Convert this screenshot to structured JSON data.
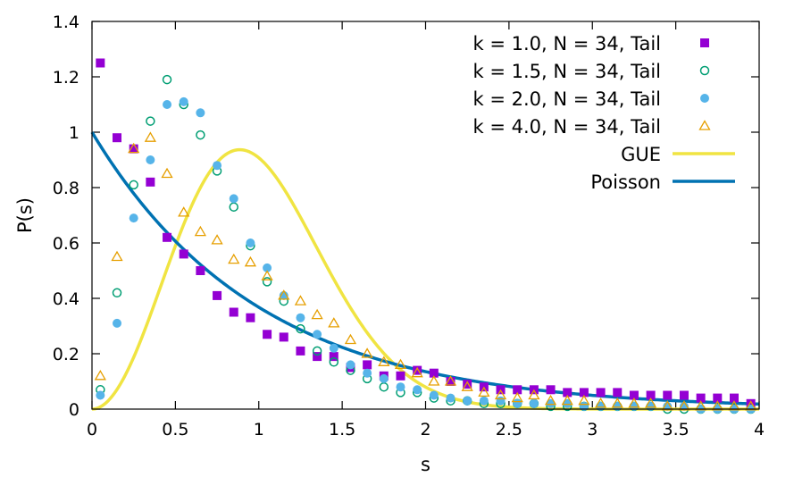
{
  "chart_data": {
    "type": "scatter",
    "title": "",
    "xlabel": "s",
    "ylabel": "P(s)",
    "xlim": [
      0,
      4
    ],
    "ylim": [
      0,
      1.4
    ],
    "xticks": [
      0,
      0.5,
      1,
      1.5,
      2,
      2.5,
      3,
      3.5,
      4
    ],
    "xtick_labels": [
      "0",
      "0.5",
      "1",
      "1.5",
      "2",
      "2.5",
      "3",
      "3.5",
      "4"
    ],
    "yticks": [
      0,
      0.2,
      0.4,
      0.6,
      0.8,
      1,
      1.2,
      1.4
    ],
    "ytick_labels": [
      "0",
      "0.2",
      "0.4",
      "0.6",
      "0.8",
      "1",
      "1.2",
      "1.4"
    ],
    "legend_position": "top-right",
    "x": [
      0.05,
      0.15,
      0.25,
      0.35,
      0.45,
      0.55,
      0.65,
      0.75,
      0.85,
      0.95,
      1.05,
      1.15,
      1.25,
      1.35,
      1.45,
      1.55,
      1.65,
      1.75,
      1.85,
      1.95,
      2.05,
      2.15,
      2.25,
      2.35,
      2.45,
      2.55,
      2.65,
      2.75,
      2.85,
      2.95,
      3.05,
      3.15,
      3.25,
      3.35,
      3.45,
      3.55,
      3.65,
      3.75,
      3.85,
      3.95
    ],
    "series": [
      {
        "name": "k = 1.0, N = 34, Tail",
        "marker": "filled-square",
        "color": "#9400d3",
        "values": [
          1.25,
          0.98,
          0.94,
          0.82,
          0.62,
          0.56,
          0.5,
          0.41,
          0.35,
          0.33,
          0.27,
          0.26,
          0.21,
          0.19,
          0.19,
          0.15,
          0.16,
          0.12,
          0.12,
          0.14,
          0.13,
          0.1,
          0.09,
          0.08,
          0.07,
          0.07,
          0.07,
          0.07,
          0.06,
          0.06,
          0.06,
          0.06,
          0.05,
          0.05,
          0.05,
          0.05,
          0.04,
          0.04,
          0.04,
          0.02
        ]
      },
      {
        "name": "k = 1.5, N = 34, Tail",
        "marker": "open-circle",
        "color": "#009e73",
        "values": [
          0.07,
          0.42,
          0.81,
          1.04,
          1.19,
          1.1,
          0.99,
          0.86,
          0.73,
          0.59,
          0.46,
          0.39,
          0.29,
          0.21,
          0.17,
          0.14,
          0.11,
          0.08,
          0.06,
          0.06,
          0.04,
          0.03,
          0.03,
          0.02,
          0.02,
          0.02,
          0.02,
          0.01,
          0.01,
          0.01,
          0.01,
          0.01,
          0.01,
          0.01,
          0.0,
          0.0,
          0.0,
          0.0,
          0.0,
          0.0
        ]
      },
      {
        "name": "k = 2.0, N = 34, Tail",
        "marker": "filled-circle",
        "color": "#56b4e9",
        "values": [
          0.05,
          0.31,
          0.69,
          0.9,
          1.1,
          1.11,
          1.07,
          0.88,
          0.76,
          0.6,
          0.51,
          0.41,
          0.33,
          0.27,
          0.22,
          0.16,
          0.13,
          0.11,
          0.08,
          0.07,
          0.05,
          0.04,
          0.03,
          0.03,
          0.03,
          0.02,
          0.02,
          0.02,
          0.02,
          0.01,
          0.01,
          0.01,
          0.01,
          0.01,
          0.01,
          0.01,
          0.0,
          0.0,
          0.0,
          0.0
        ]
      },
      {
        "name": "k = 4.0, N = 34, Tail",
        "marker": "open-triangle",
        "color": "#e69f00",
        "values": [
          0.12,
          0.55,
          0.94,
          0.98,
          0.85,
          0.71,
          0.64,
          0.61,
          0.54,
          0.53,
          0.48,
          0.41,
          0.39,
          0.34,
          0.31,
          0.25,
          0.2,
          0.17,
          0.16,
          0.13,
          0.1,
          0.1,
          0.08,
          0.06,
          0.05,
          0.04,
          0.05,
          0.03,
          0.03,
          0.03,
          0.02,
          0.02,
          0.02,
          0.02,
          0.01,
          0.01,
          0.01,
          0.01,
          0.01,
          0.01
        ]
      },
      {
        "name": "GUE",
        "type": "line",
        "function": "(32/pi^2) s^2 exp(-4 s^2 / pi)",
        "color": "#f0e442"
      },
      {
        "name": "Poisson",
        "type": "line",
        "function": "exp(-s)",
        "color": "#0072b2"
      }
    ]
  }
}
